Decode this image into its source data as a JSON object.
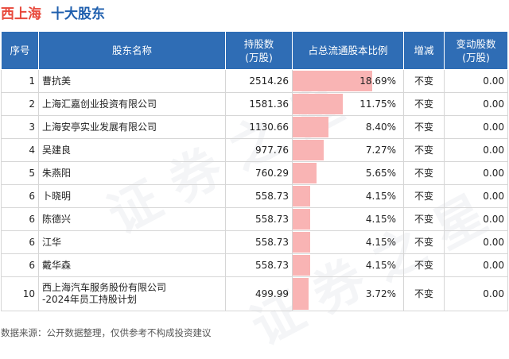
{
  "header": {
    "company": "西上海",
    "subtitle": "十大股东"
  },
  "columns": {
    "rank": "序号",
    "name": "股东名称",
    "shares": "持股数\n(万股)",
    "ratio": "占总流通股本比例",
    "change": "增减",
    "amount": "变动股数\n(万股)"
  },
  "rows": [
    {
      "rank": "1",
      "name": "曹抗美",
      "shares": "2514.26",
      "ratio_label": "18.69%",
      "ratio": 18.69,
      "change": "不变",
      "amount": "0.00"
    },
    {
      "rank": "2",
      "name": "上海汇嘉创业投资有限公司",
      "shares": "1581.36",
      "ratio_label": "11.75%",
      "ratio": 11.75,
      "change": "不变",
      "amount": "0.00"
    },
    {
      "rank": "3",
      "name": "上海安亭实业发展有限公司",
      "shares": "1130.66",
      "ratio_label": "8.40%",
      "ratio": 8.4,
      "change": "不变",
      "amount": "0.00"
    },
    {
      "rank": "4",
      "name": "吴建良",
      "shares": "977.76",
      "ratio_label": "7.27%",
      "ratio": 7.27,
      "change": "不变",
      "amount": "0.00"
    },
    {
      "rank": "5",
      "name": "朱燕阳",
      "shares": "760.29",
      "ratio_label": "5.65%",
      "ratio": 5.65,
      "change": "不变",
      "amount": "0.00"
    },
    {
      "rank": "6",
      "name": "卜晓明",
      "shares": "558.73",
      "ratio_label": "4.15%",
      "ratio": 4.15,
      "change": "不变",
      "amount": "0.00"
    },
    {
      "rank": "6",
      "name": "陈德兴",
      "shares": "558.73",
      "ratio_label": "4.15%",
      "ratio": 4.15,
      "change": "不变",
      "amount": "0.00"
    },
    {
      "rank": "6",
      "name": "江华",
      "shares": "558.73",
      "ratio_label": "4.15%",
      "ratio": 4.15,
      "change": "不变",
      "amount": "0.00"
    },
    {
      "rank": "6",
      "name": "戴华森",
      "shares": "558.73",
      "ratio_label": "4.15%",
      "ratio": 4.15,
      "change": "不变",
      "amount": "0.00"
    },
    {
      "rank": "10",
      "name": "西上海汽车服务股份有限公司\n-2024年员工持股计划",
      "shares": "499.99",
      "ratio_label": "3.72%",
      "ratio": 3.72,
      "change": "不变",
      "amount": "0.00"
    }
  ],
  "footer": "数据来源：公开数据整理，仅供参考不构成投资建议",
  "colors": {
    "title_company": "#e8483b",
    "title_sub": "#1f5fae",
    "header_bg": "#2f6db5",
    "bar": "#f9b4b4"
  }
}
